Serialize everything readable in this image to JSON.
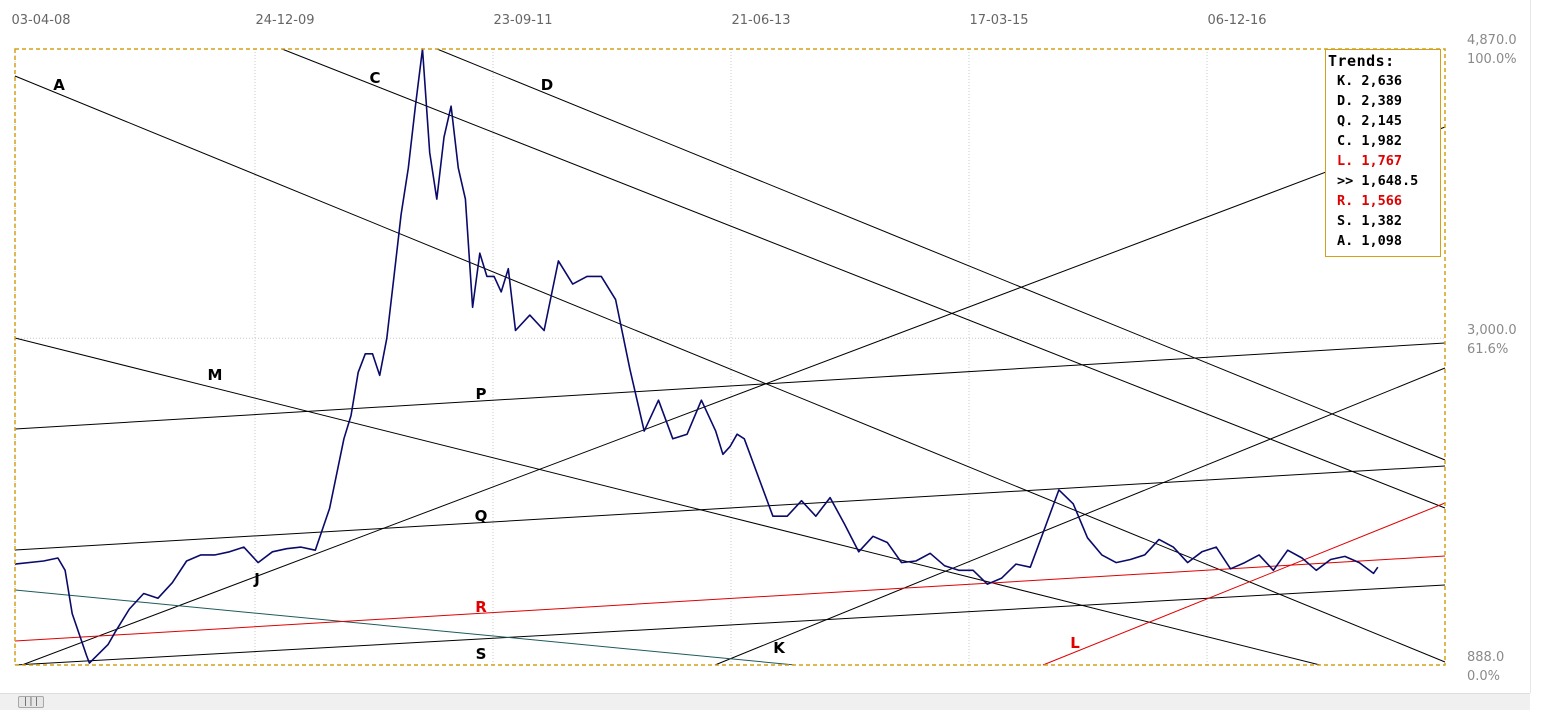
{
  "chart_data": {
    "type": "line",
    "x_labels": [
      "03-04-08",
      "24-12-09",
      "23-09-11",
      "21-06-13",
      "17-03-15",
      "06-12-16"
    ],
    "right_axis": {
      "top": {
        "value": "4,870.0",
        "pct": "100.0%"
      },
      "mid": {
        "value": "3,000.0",
        "pct": "61.6%"
      },
      "bottom": {
        "value": "888.0",
        "pct": "0.0%"
      }
    },
    "ylim": [
      888.0,
      4870.0
    ],
    "grid": true,
    "legend": {
      "placement": "top-right",
      "title": "Trends:",
      "entries": [
        {
          "label": "K. 2,636",
          "color": "#000000"
        },
        {
          "label": "D. 2,389",
          "color": "#000000"
        },
        {
          "label": "Q. 2,145",
          "color": "#000000"
        },
        {
          "label": "C. 1,982",
          "color": "#000000"
        },
        {
          "label": "L. 1,767",
          "color": "#e00000"
        },
        {
          "label": ">> 1,648.5",
          "color": "#000000"
        },
        {
          "label": "R. 1,566",
          "color": "#e00000"
        },
        {
          "label": "S. 1,382",
          "color": "#000000"
        },
        {
          "label": "A. 1,098",
          "color": "#000000"
        }
      ]
    },
    "trend_labels": [
      {
        "id": "A",
        "color": "#000000"
      },
      {
        "id": "C",
        "color": "#000000"
      },
      {
        "id": "D",
        "color": "#000000"
      },
      {
        "id": "M",
        "color": "#000000"
      },
      {
        "id": "P",
        "color": "#000000"
      },
      {
        "id": "Q",
        "color": "#000000"
      },
      {
        "id": "J",
        "color": "#000000"
      },
      {
        "id": "R",
        "color": "#e00000"
      },
      {
        "id": "S",
        "color": "#000000"
      },
      {
        "id": "K",
        "color": "#000000"
      },
      {
        "id": "L",
        "color": "#e00000"
      }
    ],
    "series": [
      {
        "color": "#0a0a6a",
        "x": [
          0,
          0.02,
          0.03,
          0.035,
          0.04,
          0.05,
          0.052,
          0.065,
          0.07,
          0.08,
          0.09,
          0.1,
          0.11,
          0.12,
          0.13,
          0.14,
          0.15,
          0.16,
          0.17,
          0.18,
          0.19,
          0.2,
          0.21,
          0.22,
          0.23,
          0.235,
          0.24,
          0.245,
          0.25,
          0.255,
          0.26,
          0.265,
          0.27,
          0.275,
          0.28,
          0.285,
          0.29,
          0.295,
          0.3,
          0.305,
          0.31,
          0.315,
          0.32,
          0.325,
          0.33,
          0.335,
          0.34,
          0.345,
          0.35,
          0.36,
          0.37,
          0.38,
          0.39,
          0.4,
          0.41,
          0.42,
          0.43,
          0.44,
          0.45,
          0.46,
          0.47,
          0.48,
          0.49,
          0.495,
          0.5,
          0.505,
          0.51,
          0.52,
          0.53,
          0.54,
          0.55,
          0.56,
          0.57,
          0.58,
          0.59,
          0.6,
          0.61,
          0.62,
          0.63,
          0.64,
          0.65,
          0.66,
          0.67,
          0.68,
          0.69,
          0.7,
          0.71,
          0.72,
          0.73,
          0.74,
          0.75,
          0.76,
          0.77,
          0.78,
          0.79,
          0.8,
          0.81,
          0.82,
          0.83,
          0.84,
          0.85,
          0.86,
          0.87,
          0.88,
          0.89,
          0.9,
          0.91,
          0.92,
          0.93,
          0.94,
          0.95,
          0.953
        ],
        "values": [
          1540,
          1560,
          1580,
          1500,
          1220,
          950,
          900,
          1020,
          1100,
          1250,
          1350,
          1320,
          1420,
          1560,
          1600,
          1600,
          1620,
          1650,
          1550,
          1620,
          1640,
          1650,
          1630,
          1900,
          2350,
          2500,
          2780,
          2900,
          2900,
          2760,
          3000,
          3400,
          3800,
          4100,
          4500,
          4870,
          4200,
          3900,
          4300,
          4500,
          4100,
          3900,
          3200,
          3550,
          3400,
          3400,
          3300,
          3450,
          3050,
          3150,
          3050,
          3500,
          3350,
          3400,
          3400,
          3250,
          2800,
          2400,
          2600,
          2350,
          2380,
          2600,
          2400,
          2250,
          2300,
          2380,
          2350,
          2100,
          1850,
          1850,
          1950,
          1850,
          1970,
          1800,
          1620,
          1720,
          1680,
          1550,
          1560,
          1610,
          1530,
          1500,
          1500,
          1410,
          1450,
          1540,
          1520,
          1770,
          2020,
          1930,
          1710,
          1600,
          1550,
          1570,
          1600,
          1700,
          1650,
          1550,
          1620,
          1650,
          1510,
          1550,
          1600,
          1500,
          1630,
          1580,
          1500,
          1570,
          1590,
          1550,
          1480,
          1520
        ]
      }
    ]
  },
  "scrollbar": {
    "thumb_glyph": "|||"
  }
}
